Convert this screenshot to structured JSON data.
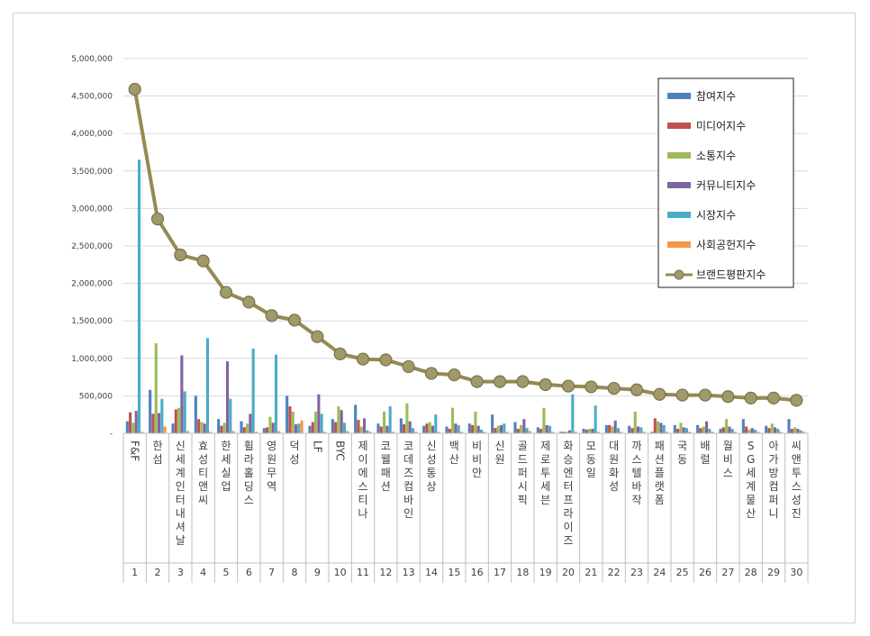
{
  "chart_data": {
    "type": "bar",
    "title": "",
    "xlabel": "",
    "ylabel": "",
    "ylim": [
      0,
      5000000
    ],
    "yticks": [
      "-",
      "500,000",
      "1,000,000",
      "1,500,000",
      "2,000,000",
      "2,500,000",
      "3,000,000",
      "3,500,000",
      "4,000,000",
      "4,500,000",
      "5,000,000"
    ],
    "grid": true,
    "legend_position": "right",
    "categories": [
      "F&F",
      "한섬",
      "신세계인터내셔날",
      "효성티앤씨",
      "한세실업",
      "휠라홀딩스",
      "영원무역",
      "덕성",
      "LF",
      "BYC",
      "제이에스티나",
      "코웰패션",
      "코데즈컴바인",
      "신성통상",
      "백산",
      "비비안",
      "신원",
      "골드퍼시픽",
      "제로투세븐",
      "화승엔터프라이즈",
      "모동일",
      "대원화성",
      "까스텔바작",
      "패션플랫폼",
      "국동",
      "배럴",
      "월비스",
      "SG세계물산",
      "아가방컴퍼니",
      "씨앤투스성진"
    ],
    "ranks": [
      "1",
      "2",
      "3",
      "4",
      "5",
      "6",
      "7",
      "8",
      "9",
      "10",
      "11",
      "12",
      "13",
      "14",
      "15",
      "16",
      "17",
      "18",
      "19",
      "20",
      "21",
      "22",
      "23",
      "24",
      "25",
      "26",
      "27",
      "28",
      "29",
      "30"
    ],
    "series": [
      {
        "name": "참여지수",
        "type": "bar",
        "color": "#4f81bd",
        "values": [
          160000,
          580000,
          130000,
          500000,
          190000,
          160000,
          70000,
          500000,
          100000,
          190000,
          380000,
          130000,
          200000,
          100000,
          90000,
          130000,
          250000,
          150000,
          80000,
          20000,
          60000,
          110000,
          100000,
          20000,
          110000,
          110000,
          60000,
          190000,
          100000,
          190000
        ]
      },
      {
        "name": "미디어지수",
        "type": "bar",
        "color": "#c0504d",
        "values": [
          280000,
          260000,
          320000,
          190000,
          100000,
          80000,
          80000,
          360000,
          150000,
          150000,
          180000,
          90000,
          120000,
          130000,
          60000,
          110000,
          70000,
          60000,
          60000,
          20000,
          50000,
          110000,
          70000,
          200000,
          60000,
          70000,
          80000,
          90000,
          70000,
          60000
        ]
      },
      {
        "name": "소통지수",
        "type": "bar",
        "color": "#9bbb59",
        "values": [
          140000,
          1200000,
          340000,
          150000,
          140000,
          130000,
          220000,
          290000,
          290000,
          360000,
          90000,
          290000,
          400000,
          150000,
          340000,
          290000,
          100000,
          110000,
          340000,
          20000,
          60000,
          90000,
          290000,
          160000,
          140000,
          90000,
          190000,
          50000,
          130000,
          80000
        ]
      },
      {
        "name": "커뮤니티지수",
        "type": "bar",
        "color": "#8064a2",
        "values": [
          300000,
          270000,
          1040000,
          130000,
          960000,
          260000,
          140000,
          120000,
          520000,
          310000,
          200000,
          100000,
          160000,
          100000,
          130000,
          100000,
          110000,
          190000,
          110000,
          40000,
          60000,
          170000,
          90000,
          140000,
          80000,
          160000,
          90000,
          70000,
          80000,
          60000
        ]
      },
      {
        "name": "시장지수",
        "type": "bar",
        "color": "#4bacc6",
        "values": [
          3650000,
          460000,
          560000,
          1270000,
          460000,
          1130000,
          1050000,
          130000,
          260000,
          140000,
          40000,
          360000,
          70000,
          250000,
          110000,
          50000,
          130000,
          70000,
          100000,
          520000,
          370000,
          70000,
          80000,
          110000,
          70000,
          60000,
          60000,
          50000,
          60000,
          40000
        ]
      },
      {
        "name": "사회공헌지수",
        "type": "bar",
        "color": "#f79646",
        "values": [
          20000,
          90000,
          30000,
          20000,
          30000,
          20000,
          30000,
          170000,
          20000,
          30000,
          20000,
          20000,
          20000,
          20000,
          20000,
          20000,
          20000,
          30000,
          20000,
          20000,
          20000,
          20000,
          20000,
          20000,
          20000,
          20000,
          20000,
          20000,
          20000,
          20000
        ]
      },
      {
        "name": "브랜드평판지수",
        "type": "line",
        "color": "#948a54",
        "values": [
          4590000,
          2860000,
          2380000,
          2300000,
          1880000,
          1750000,
          1570000,
          1510000,
          1290000,
          1060000,
          990000,
          980000,
          890000,
          800000,
          780000,
          690000,
          690000,
          690000,
          650000,
          630000,
          620000,
          600000,
          580000,
          520000,
          510000,
          510000,
          490000,
          470000,
          470000,
          440000
        ]
      }
    ]
  }
}
